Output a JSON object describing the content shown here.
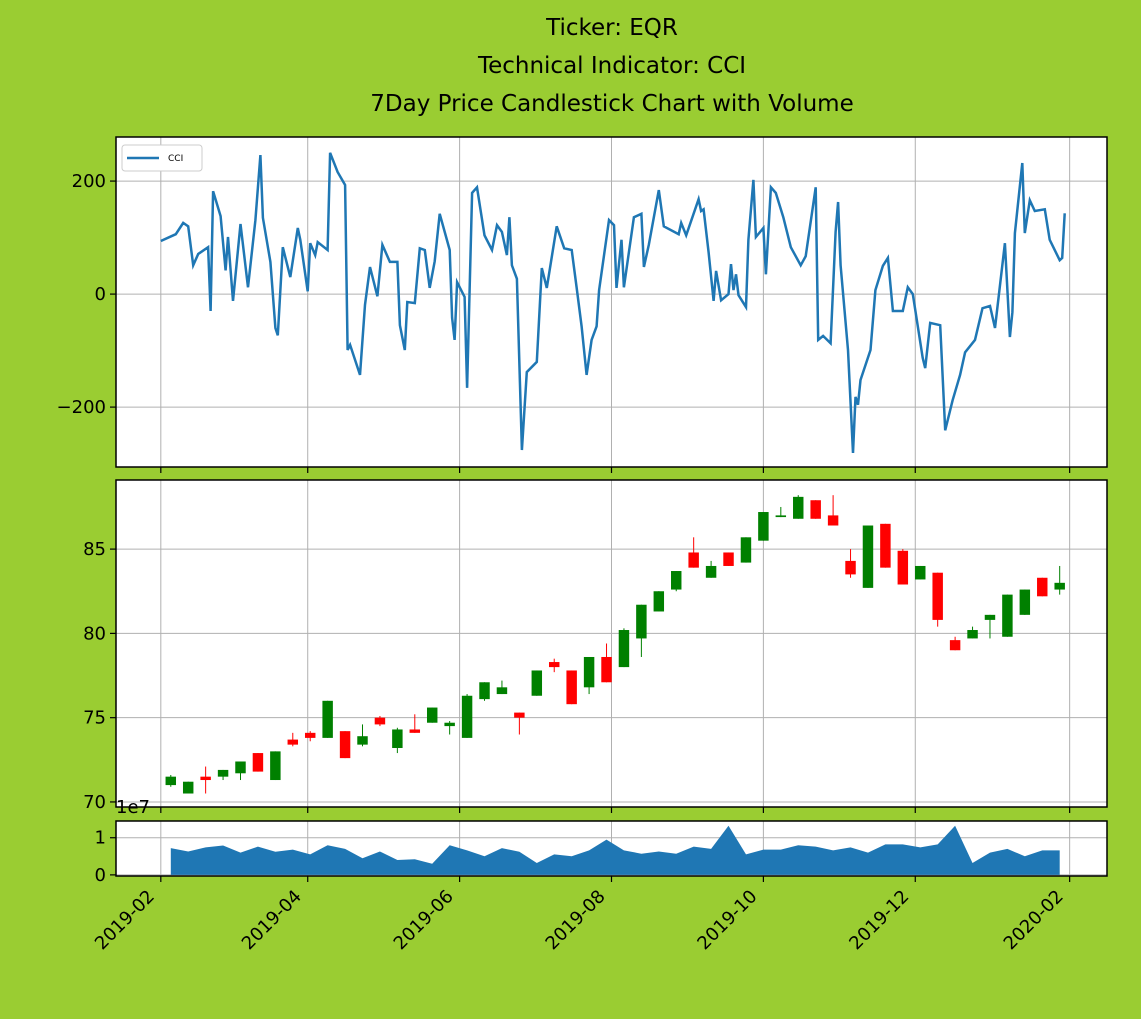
{
  "chart_data": [
    {
      "type": "line",
      "title": [
        "Ticker: EQR",
        "Technical Indicator: CCI",
        "7Day Price Candlestick Chart with Volume"
      ],
      "series": [
        {
          "name": "CCI",
          "color": "#1f77b4",
          "x": [
            "2019-02-01",
            "2019-02-07",
            "2019-02-10",
            "2019-02-12",
            "2019-02-14",
            "2019-02-16",
            "2019-02-20",
            "2019-02-21",
            "2019-02-22",
            "2019-02-25",
            "2019-02-27",
            "2019-02-28",
            "2019-03-02",
            "2019-03-05",
            "2019-03-08",
            "2019-03-11",
            "2019-03-13",
            "2019-03-14",
            "2019-03-17",
            "2019-03-19",
            "2019-03-20",
            "2019-03-22",
            "2019-03-25",
            "2019-03-28",
            "2019-03-29",
            "2019-04-01",
            "2019-04-02",
            "2019-04-04",
            "2019-04-05",
            "2019-04-09",
            "2019-04-10",
            "2019-04-13",
            "2019-04-16",
            "2019-04-17",
            "2019-04-18",
            "2019-04-22",
            "2019-04-24",
            "2019-04-26",
            "2019-04-29",
            "2019-05-01",
            "2019-05-04",
            "2019-05-07",
            "2019-05-08",
            "2019-05-10",
            "2019-05-11",
            "2019-05-14",
            "2019-05-16",
            "2019-05-18",
            "2019-05-20",
            "2019-05-22",
            "2019-05-24",
            "2019-05-28",
            "2019-05-29",
            "2019-05-30",
            "2019-05-31",
            "2019-06-03",
            "2019-06-04",
            "2019-06-06",
            "2019-06-08",
            "2019-06-11",
            "2019-06-14",
            "2019-06-16",
            "2019-06-18",
            "2019-06-20",
            "2019-06-21",
            "2019-06-22",
            "2019-06-24",
            "2019-06-26",
            "2019-06-28",
            "2019-07-02",
            "2019-07-04",
            "2019-07-06",
            "2019-07-10",
            "2019-07-13",
            "2019-07-16",
            "2019-07-18",
            "2019-07-20",
            "2019-07-22",
            "2019-07-24",
            "2019-07-26",
            "2019-07-27",
            "2019-07-31",
            "2019-08-02",
            "2019-08-03",
            "2019-08-05",
            "2019-08-06",
            "2019-08-10",
            "2019-08-13",
            "2019-08-14",
            "2019-08-16",
            "2019-08-20",
            "2019-08-22",
            "2019-08-28",
            "2019-08-29",
            "2019-08-31",
            "2019-09-05",
            "2019-09-06",
            "2019-09-07",
            "2019-09-09",
            "2019-09-11",
            "2019-09-12",
            "2019-09-14",
            "2019-09-17",
            "2019-09-18",
            "2019-09-19",
            "2019-09-20",
            "2019-09-21",
            "2019-09-24",
            "2019-09-25",
            "2019-09-27",
            "2019-09-28",
            "2019-10-01",
            "2019-10-02",
            "2019-10-04",
            "2019-10-06",
            "2019-10-09",
            "2019-10-12",
            "2019-10-16",
            "2019-10-18",
            "2019-10-22",
            "2019-10-23",
            "2019-10-25",
            "2019-10-28",
            "2019-10-30",
            "2019-10-31",
            "2019-11-01",
            "2019-11-04",
            "2019-11-06",
            "2019-11-07",
            "2019-11-08",
            "2019-11-09",
            "2019-11-13",
            "2019-11-15",
            "2019-11-18",
            "2019-11-20",
            "2019-11-22",
            "2019-11-26",
            "2019-11-28",
            "2019-11-30",
            "2019-12-04",
            "2019-12-05",
            "2019-12-07",
            "2019-12-11",
            "2019-12-13",
            "2019-12-16",
            "2019-12-19",
            "2019-12-21",
            "2019-12-25",
            "2019-12-28",
            "2019-12-31",
            "2020-01-02",
            "2020-01-06",
            "2020-01-08",
            "2020-01-09",
            "2020-01-10",
            "2020-01-13",
            "2020-01-14",
            "2020-01-16",
            "2020-01-18",
            "2020-01-22",
            "2020-01-24",
            "2020-01-28",
            "2020-01-29",
            "2020-01-30"
          ],
          "values": [
            94,
            106,
            126,
            120,
            51,
            71,
            83,
            -30,
            182,
            138,
            42,
            101,
            -12,
            124,
            12,
            131,
            246,
            135,
            57,
            -60,
            -73,
            83,
            30,
            117,
            96,
            5,
            90,
            69,
            92,
            78,
            250,
            216,
            193,
            -99,
            -90,
            -143,
            -19,
            48,
            -4,
            87,
            57,
            57,
            -55,
            -99,
            -14,
            -16,
            81,
            78,
            11,
            58,
            142,
            78,
            -42,
            -81,
            21,
            -5,
            -166,
            179,
            189,
            104,
            78,
            122,
            110,
            69,
            136,
            51,
            27,
            -276,
            -138,
            -120,
            46,
            11,
            120,
            81,
            78,
            12,
            -57,
            -143,
            -81,
            -57,
            7,
            131,
            122,
            11,
            96,
            12,
            136,
            142,
            48,
            87,
            184,
            120,
            106,
            126,
            104,
            168,
            147,
            150,
            74,
            -12,
            41,
            -11,
            0,
            53,
            7,
            35,
            -2,
            -23,
            96,
            202,
            101,
            117,
            35,
            189,
            179,
            136,
            83,
            51,
            67,
            189,
            -81,
            -74,
            -87,
            110,
            163,
            51,
            -99,
            -281,
            -182,
            -196,
            -152,
            -99,
            7,
            50,
            64,
            -30,
            -30,
            12,
            0,
            -113,
            -131,
            -51,
            -55,
            -241,
            -188,
            -143,
            -103,
            -81,
            -25,
            -21,
            -60,
            90,
            -76,
            -32,
            108,
            232,
            108,
            166,
            147,
            150,
            96,
            60,
            64,
            143
          ]
        }
      ],
      "ylim": [
        -306,
        278
      ],
      "yticks": [
        {
          "value": -200,
          "label": "−200"
        },
        0,
        200
      ],
      "grid": true,
      "legend": "upper left"
    },
    {
      "type": "candlestick",
      "x": [
        "2019-02-05",
        "2019-02-12",
        "2019-02-19",
        "2019-02-26",
        "2019-03-05",
        "2019-03-12",
        "2019-03-19",
        "2019-03-26",
        "2019-04-02",
        "2019-04-09",
        "2019-04-16",
        "2019-04-23",
        "2019-04-30",
        "2019-05-07",
        "2019-05-14",
        "2019-05-21",
        "2019-05-28",
        "2019-06-04",
        "2019-06-11",
        "2019-06-18",
        "2019-06-25",
        "2019-07-02",
        "2019-07-09",
        "2019-07-16",
        "2019-07-23",
        "2019-07-30",
        "2019-08-06",
        "2019-08-13",
        "2019-08-20",
        "2019-08-27",
        "2019-09-03",
        "2019-09-10",
        "2019-09-17",
        "2019-09-24",
        "2019-10-01",
        "2019-10-08",
        "2019-10-15",
        "2019-10-22",
        "2019-10-29",
        "2019-11-05",
        "2019-11-12",
        "2019-11-19",
        "2019-11-26",
        "2019-12-03",
        "2019-12-10",
        "2019-12-17",
        "2019-12-24",
        "2019-12-31",
        "2020-01-07",
        "2020-01-14",
        "2020-01-21",
        "2020-01-28"
      ],
      "open": [
        71.0,
        70.5,
        71.5,
        71.5,
        71.7,
        72.9,
        71.3,
        73.7,
        74.1,
        73.8,
        74.2,
        73.4,
        75.0,
        73.2,
        74.3,
        74.7,
        74.5,
        73.8,
        76.1,
        76.4,
        75.3,
        76.3,
        78.3,
        77.8,
        76.8,
        78.6,
        78.0,
        79.7,
        81.3,
        82.6,
        84.8,
        83.3,
        84.8,
        84.2,
        85.5,
        86.9,
        86.8,
        87.9,
        87.0,
        84.3,
        82.7,
        86.5,
        84.9,
        83.2,
        83.6,
        79.6,
        79.7,
        80.8,
        79.8,
        81.1,
        83.3,
        82.6
      ],
      "high": [
        71.6,
        71.2,
        72.1,
        71.9,
        72.4,
        72.9,
        73.0,
        74.1,
        74.2,
        76.0,
        74.2,
        74.6,
        75.1,
        74.4,
        75.2,
        75.6,
        74.8,
        76.4,
        77.1,
        77.2,
        75.3,
        77.8,
        78.5,
        77.8,
        78.6,
        79.4,
        80.3,
        81.7,
        82.5,
        83.7,
        85.7,
        84.3,
        84.8,
        85.7,
        87.2,
        87.5,
        88.2,
        87.9,
        88.2,
        85.0,
        86.4,
        86.5,
        85.0,
        84.0,
        83.6,
        79.8,
        80.4,
        81.1,
        82.3,
        82.6,
        83.3,
        84.0
      ],
      "low": [
        70.9,
        70.5,
        70.5,
        71.3,
        71.3,
        71.8,
        71.3,
        73.3,
        73.6,
        73.8,
        72.6,
        73.3,
        74.5,
        72.9,
        74.1,
        74.7,
        74.0,
        73.8,
        76.0,
        76.4,
        74.0,
        76.3,
        77.7,
        75.8,
        76.4,
        77.1,
        78.0,
        78.6,
        81.3,
        82.5,
        83.9,
        83.3,
        84.0,
        84.2,
        85.5,
        86.9,
        86.8,
        86.8,
        86.4,
        83.3,
        82.7,
        83.9,
        82.9,
        83.2,
        80.4,
        79.0,
        79.7,
        79.7,
        79.8,
        81.1,
        82.2,
        82.3
      ],
      "close": [
        71.5,
        71.2,
        71.3,
        71.9,
        72.4,
        71.8,
        73.0,
        73.4,
        73.8,
        76.0,
        72.6,
        73.9,
        74.6,
        74.3,
        74.1,
        75.6,
        74.7,
        76.3,
        77.1,
        76.8,
        75.0,
        77.8,
        78.0,
        75.8,
        78.6,
        77.1,
        80.2,
        81.7,
        82.5,
        83.7,
        83.9,
        84.0,
        84.0,
        85.7,
        87.2,
        87.0,
        88.1,
        86.8,
        86.4,
        83.5,
        86.4,
        83.9,
        82.9,
        84.0,
        80.8,
        79.0,
        80.2,
        81.1,
        82.3,
        82.6,
        82.2,
        83.0
      ],
      "up_color": "#008000",
      "down_color": "#ff0000",
      "ylim": [
        69.7,
        89.1
      ],
      "yticks": [
        70,
        75,
        80,
        85
      ],
      "grid": true
    },
    {
      "type": "area",
      "x": [
        "2019-02-05",
        "2019-02-12",
        "2019-02-19",
        "2019-02-26",
        "2019-03-05",
        "2019-03-12",
        "2019-03-19",
        "2019-03-26",
        "2019-04-02",
        "2019-04-09",
        "2019-04-16",
        "2019-04-23",
        "2019-04-30",
        "2019-05-07",
        "2019-05-14",
        "2019-05-21",
        "2019-05-28",
        "2019-06-04",
        "2019-06-11",
        "2019-06-18",
        "2019-06-25",
        "2019-07-02",
        "2019-07-09",
        "2019-07-16",
        "2019-07-23",
        "2019-07-30",
        "2019-08-06",
        "2019-08-13",
        "2019-08-20",
        "2019-08-27",
        "2019-09-03",
        "2019-09-10",
        "2019-09-17",
        "2019-09-24",
        "2019-10-01",
        "2019-10-08",
        "2019-10-15",
        "2019-10-22",
        "2019-10-29",
        "2019-11-05",
        "2019-11-12",
        "2019-11-19",
        "2019-11-26",
        "2019-12-03",
        "2019-12-10",
        "2019-12-17",
        "2019-12-24",
        "2019-12-31",
        "2020-01-07",
        "2020-01-14",
        "2020-01-21",
        "2020-01-28"
      ],
      "values": [
        0.72,
        0.63,
        0.74,
        0.79,
        0.6,
        0.76,
        0.62,
        0.68,
        0.55,
        0.8,
        0.7,
        0.45,
        0.63,
        0.4,
        0.42,
        0.3,
        0.8,
        0.66,
        0.5,
        0.72,
        0.62,
        0.32,
        0.55,
        0.5,
        0.66,
        0.95,
        0.66,
        0.57,
        0.63,
        0.57,
        0.76,
        0.7,
        1.32,
        0.55,
        0.68,
        0.68,
        0.8,
        0.76,
        0.66,
        0.74,
        0.6,
        0.82,
        0.82,
        0.74,
        0.82,
        1.32,
        0.32,
        0.6,
        0.7,
        0.5,
        0.66,
        0.66
      ],
      "color": "#1f77b4",
      "ylim": [
        -0.03,
        1.45
      ],
      "yticks": [
        0,
        1
      ],
      "y_offset": "1e7",
      "xlim": [
        "2019-01-14",
        "2020-02-16"
      ],
      "xticks": [
        "2019-02",
        "2019-04",
        "2019-06",
        "2019-08",
        "2019-10",
        "2019-12",
        "2020-02"
      ],
      "grid": true
    }
  ]
}
